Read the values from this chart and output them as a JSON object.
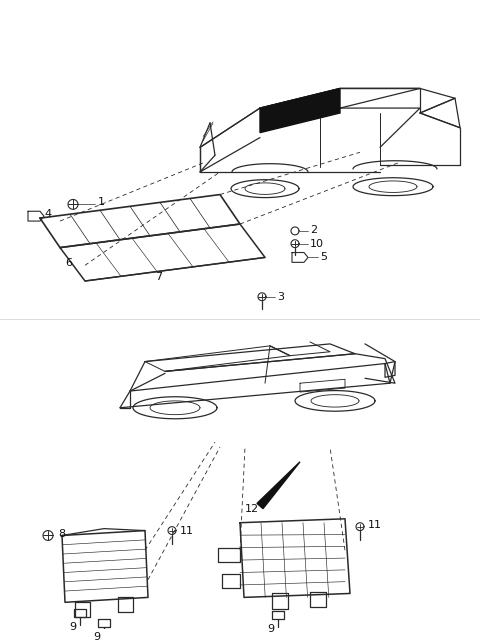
{
  "bg_color": "#ffffff",
  "line_color": "#2a2a2a",
  "label_color": "#111111",
  "fig_width": 4.8,
  "fig_height": 6.4,
  "dpi": 100
}
